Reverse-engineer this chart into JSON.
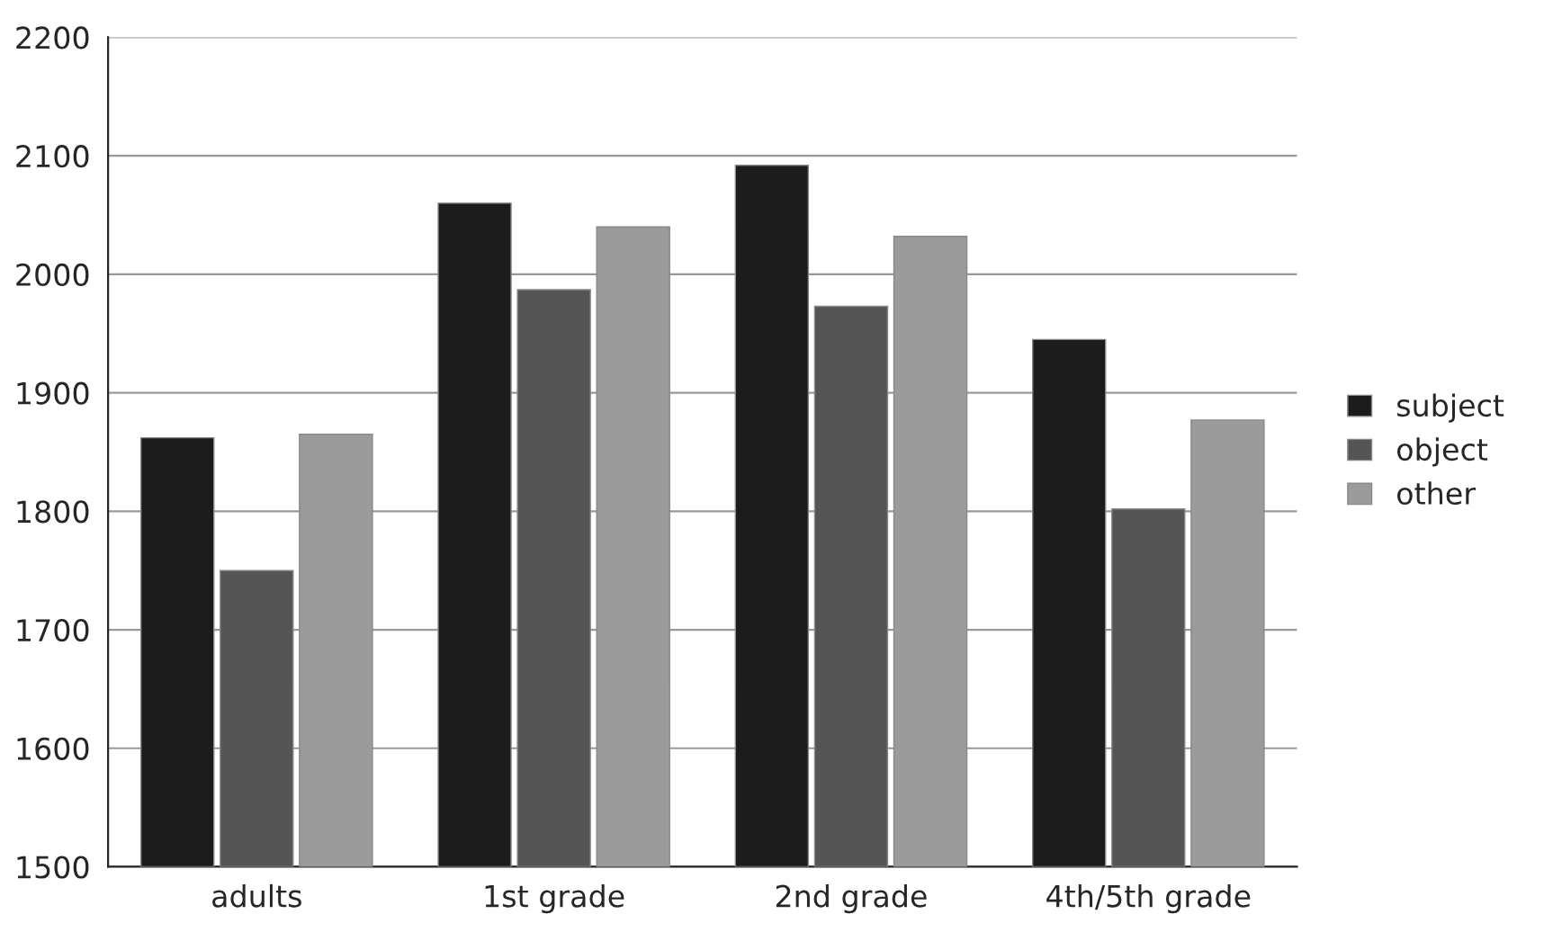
{
  "chart_data": {
    "type": "bar",
    "categories": [
      "adults",
      "1st grade",
      "2nd grade",
      "4th/5th grade"
    ],
    "series": [
      {
        "name": "subject",
        "color": "#1c1c1c",
        "values": [
          1862,
          2060,
          2092,
          1945
        ]
      },
      {
        "name": "object",
        "color": "#555555",
        "values": [
          1750,
          1987,
          1973,
          1802
        ]
      },
      {
        "name": "other",
        "color": "#9b9b9b",
        "values": [
          1865,
          2040,
          2032,
          1877
        ]
      }
    ],
    "ylim": [
      1500,
      2200
    ],
    "yticks": [
      1500,
      1600,
      1700,
      1800,
      1900,
      2000,
      2100,
      2200
    ],
    "grid": "y",
    "legend": "right"
  }
}
